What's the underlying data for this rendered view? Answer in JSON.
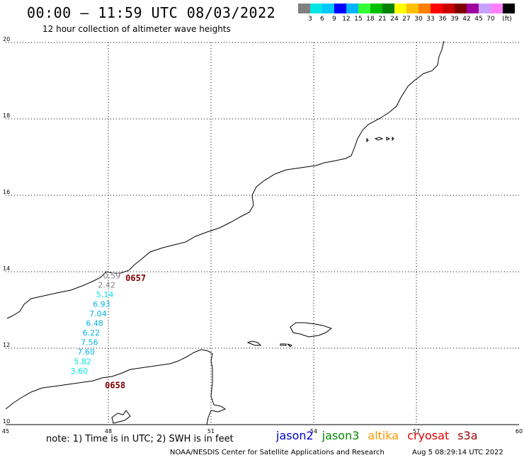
{
  "header": {
    "title": "00:00 – 11:59 UTC 08/03/2022",
    "subtitle": "12 hour collection of altimeter wave heights"
  },
  "colorbar": {
    "colors": [
      "#808080",
      "#00e5e5",
      "#00c8ff",
      "#0000ff",
      "#00b4ff",
      "#33ff33",
      "#00c000",
      "#008000",
      "#ffff00",
      "#ffc000",
      "#ff8000",
      "#ff0000",
      "#c80000",
      "#800000",
      "#a000a0",
      "#c8a0ff",
      "#ff80ff",
      "#000000"
    ],
    "labels": [
      "3",
      "6",
      "9",
      "12",
      "15",
      "18",
      "21",
      "24",
      "27",
      "30",
      "33",
      "36",
      "39",
      "42",
      "45",
      "70",
      "(ft)"
    ]
  },
  "axes": {
    "lon_labels": [
      "45",
      "48",
      "51",
      "54",
      "57",
      "60"
    ],
    "lat_labels": [
      "20",
      "18",
      "16",
      "14",
      "12",
      "10"
    ]
  },
  "tracks": [
    {
      "time_label": "0657",
      "time_color": "#800000",
      "points": [
        {
          "value": "0.59",
          "color": "#808080",
          "lat": 13.9,
          "lon": 48.1
        },
        {
          "value": "2.42",
          "color": "#808080",
          "lat": 13.66,
          "lon": 47.95
        },
        {
          "value": "5.14",
          "color": "#00e5e5",
          "lat": 13.41,
          "lon": 47.9
        },
        {
          "value": "6.93",
          "color": "#00b4e0",
          "lat": 13.16,
          "lon": 47.8
        },
        {
          "value": "7.04",
          "color": "#00b4e0",
          "lat": 12.91,
          "lon": 47.7
        },
        {
          "value": "6.48",
          "color": "#00b4e0",
          "lat": 12.66,
          "lon": 47.6
        },
        {
          "value": "6.22",
          "color": "#00b4e0",
          "lat": 12.41,
          "lon": 47.5
        },
        {
          "value": "7.56",
          "color": "#00b4e0",
          "lat": 12.16,
          "lon": 47.45
        },
        {
          "value": "7.60",
          "color": "#00b4e0",
          "lat": 11.91,
          "lon": 47.35
        },
        {
          "value": "5.82",
          "color": "#00e5e5",
          "lat": 11.66,
          "lon": 47.25
        },
        {
          "value": "3.60",
          "color": "#00e5e5",
          "lat": 11.41,
          "lon": 47.15
        }
      ]
    },
    {
      "time_label": "0658",
      "time_color": "#800000",
      "points": []
    }
  ],
  "footer": {
    "note": "note: 1) Time is in UTC; 2) SWH is in feet",
    "satellites": [
      {
        "name": "jason2",
        "color": "#0000cc"
      },
      {
        "name": "jason3",
        "color": "#008800"
      },
      {
        "name": "altika",
        "color": "#ff9900"
      },
      {
        "name": "cryosat",
        "color": "#dd0000"
      },
      {
        "name": "s3a",
        "color": "#990000"
      }
    ],
    "credit": "NOAA/NESDIS Center for Satellite Applications and Research",
    "timestamp": "Aug  5 08:29:14 UTC 2022"
  }
}
